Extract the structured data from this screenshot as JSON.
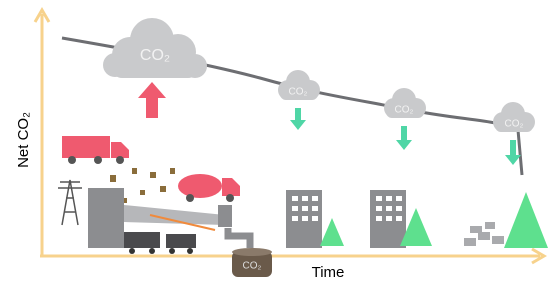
{
  "axes": {
    "y_label": "Net CO₂",
    "x_label": "Time"
  },
  "clouds": [
    {
      "label": "CO₂"
    },
    {
      "label": "CO₂"
    },
    {
      "label": "CO₂"
    },
    {
      "label": "CO₂"
    }
  ],
  "storage": {
    "label": "CO₂"
  }
}
